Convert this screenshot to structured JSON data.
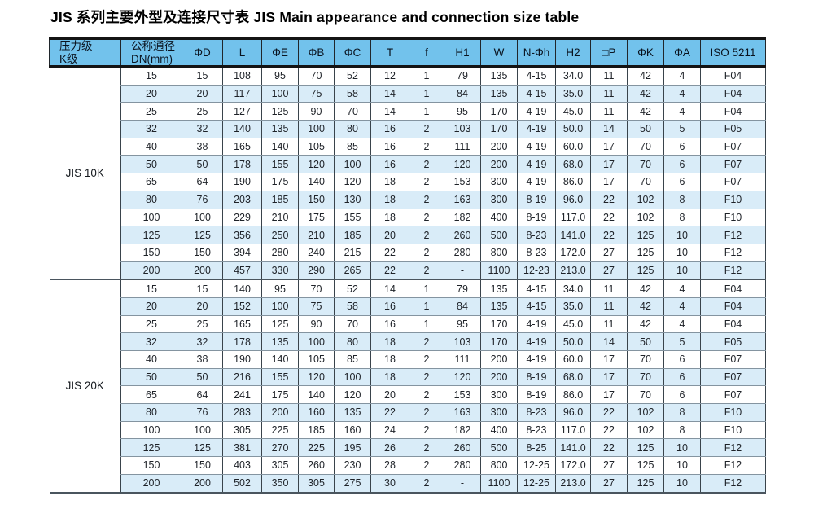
{
  "title": "JIS 系列主要外型及连接尺寸表  JIS Main appearance and connection size table",
  "colors": {
    "header_bg": "#72c2ec",
    "stripe_bg": "#d9ecf8",
    "border_dark": "#141414",
    "header_text": "#0a1420"
  },
  "table": {
    "columns": [
      [
        "压力级",
        "K级"
      ],
      [
        "公称通径",
        "DN(mm)"
      ],
      "ΦD",
      "L",
      "ΦE",
      "ΦB",
      "ΦC",
      "T",
      "f",
      "H1",
      "W",
      "N-Φh",
      "H2",
      "□P",
      "ΦK",
      "ΦA",
      "ISO 5211"
    ],
    "sections": [
      {
        "label": "JIS 10K",
        "rows": [
          [
            "15",
            "15",
            "108",
            "95",
            "70",
            "52",
            "12",
            "1",
            "79",
            "135",
            "4-15",
            "34.0",
            "11",
            "42",
            "4",
            "F04"
          ],
          [
            "20",
            "20",
            "117",
            "100",
            "75",
            "58",
            "14",
            "1",
            "84",
            "135",
            "4-15",
            "35.0",
            "11",
            "42",
            "4",
            "F04"
          ],
          [
            "25",
            "25",
            "127",
            "125",
            "90",
            "70",
            "14",
            "1",
            "95",
            "170",
            "4-19",
            "45.0",
            "11",
            "42",
            "4",
            "F04"
          ],
          [
            "32",
            "32",
            "140",
            "135",
            "100",
            "80",
            "16",
            "2",
            "103",
            "170",
            "4-19",
            "50.0",
            "14",
            "50",
            "5",
            "F05"
          ],
          [
            "40",
            "38",
            "165",
            "140",
            "105",
            "85",
            "16",
            "2",
            "111",
            "200",
            "4-19",
            "60.0",
            "17",
            "70",
            "6",
            "F07"
          ],
          [
            "50",
            "50",
            "178",
            "155",
            "120",
            "100",
            "16",
            "2",
            "120",
            "200",
            "4-19",
            "68.0",
            "17",
            "70",
            "6",
            "F07"
          ],
          [
            "65",
            "64",
            "190",
            "175",
            "140",
            "120",
            "18",
            "2",
            "153",
            "300",
            "4-19",
            "86.0",
            "17",
            "70",
            "6",
            "F07"
          ],
          [
            "80",
            "76",
            "203",
            "185",
            "150",
            "130",
            "18",
            "2",
            "163",
            "300",
            "8-19",
            "96.0",
            "22",
            "102",
            "8",
            "F10"
          ],
          [
            "100",
            "100",
            "229",
            "210",
            "175",
            "155",
            "18",
            "2",
            "182",
            "400",
            "8-19",
            "117.0",
            "22",
            "102",
            "8",
            "F10"
          ],
          [
            "125",
            "125",
            "356",
            "250",
            "210",
            "185",
            "20",
            "2",
            "260",
            "500",
            "8-23",
            "141.0",
            "22",
            "125",
            "10",
            "F12"
          ],
          [
            "150",
            "150",
            "394",
            "280",
            "240",
            "215",
            "22",
            "2",
            "280",
            "800",
            "8-23",
            "172.0",
            "27",
            "125",
            "10",
            "F12"
          ],
          [
            "200",
            "200",
            "457",
            "330",
            "290",
            "265",
            "22",
            "2",
            "-",
            "1100",
            "12-23",
            "213.0",
            "27",
            "125",
            "10",
            "F12"
          ]
        ]
      },
      {
        "label": "JIS 20K",
        "rows": [
          [
            "15",
            "15",
            "140",
            "95",
            "70",
            "52",
            "14",
            "1",
            "79",
            "135",
            "4-15",
            "34.0",
            "11",
            "42",
            "4",
            "F04"
          ],
          [
            "20",
            "20",
            "152",
            "100",
            "75",
            "58",
            "16",
            "1",
            "84",
            "135",
            "4-15",
            "35.0",
            "11",
            "42",
            "4",
            "F04"
          ],
          [
            "25",
            "25",
            "165",
            "125",
            "90",
            "70",
            "16",
            "1",
            "95",
            "170",
            "4-19",
            "45.0",
            "11",
            "42",
            "4",
            "F04"
          ],
          [
            "32",
            "32",
            "178",
            "135",
            "100",
            "80",
            "18",
            "2",
            "103",
            "170",
            "4-19",
            "50.0",
            "14",
            "50",
            "5",
            "F05"
          ],
          [
            "40",
            "38",
            "190",
            "140",
            "105",
            "85",
            "18",
            "2",
            "111",
            "200",
            "4-19",
            "60.0",
            "17",
            "70",
            "6",
            "F07"
          ],
          [
            "50",
            "50",
            "216",
            "155",
            "120",
            "100",
            "18",
            "2",
            "120",
            "200",
            "8-19",
            "68.0",
            "17",
            "70",
            "6",
            "F07"
          ],
          [
            "65",
            "64",
            "241",
            "175",
            "140",
            "120",
            "20",
            "2",
            "153",
            "300",
            "8-19",
            "86.0",
            "17",
            "70",
            "6",
            "F07"
          ],
          [
            "80",
            "76",
            "283",
            "200",
            "160",
            "135",
            "22",
            "2",
            "163",
            "300",
            "8-23",
            "96.0",
            "22",
            "102",
            "8",
            "F10"
          ],
          [
            "100",
            "100",
            "305",
            "225",
            "185",
            "160",
            "24",
            "2",
            "182",
            "400",
            "8-23",
            "117.0",
            "22",
            "102",
            "8",
            "F10"
          ],
          [
            "125",
            "125",
            "381",
            "270",
            "225",
            "195",
            "26",
            "2",
            "260",
            "500",
            "8-25",
            "141.0",
            "22",
            "125",
            "10",
            "F12"
          ],
          [
            "150",
            "150",
            "403",
            "305",
            "260",
            "230",
            "28",
            "2",
            "280",
            "800",
            "12-25",
            "172.0",
            "27",
            "125",
            "10",
            "F12"
          ],
          [
            "200",
            "200",
            "502",
            "350",
            "305",
            "275",
            "30",
            "2",
            "-",
            "1100",
            "12-25",
            "213.0",
            "27",
            "125",
            "10",
            "F12"
          ]
        ]
      }
    ]
  }
}
